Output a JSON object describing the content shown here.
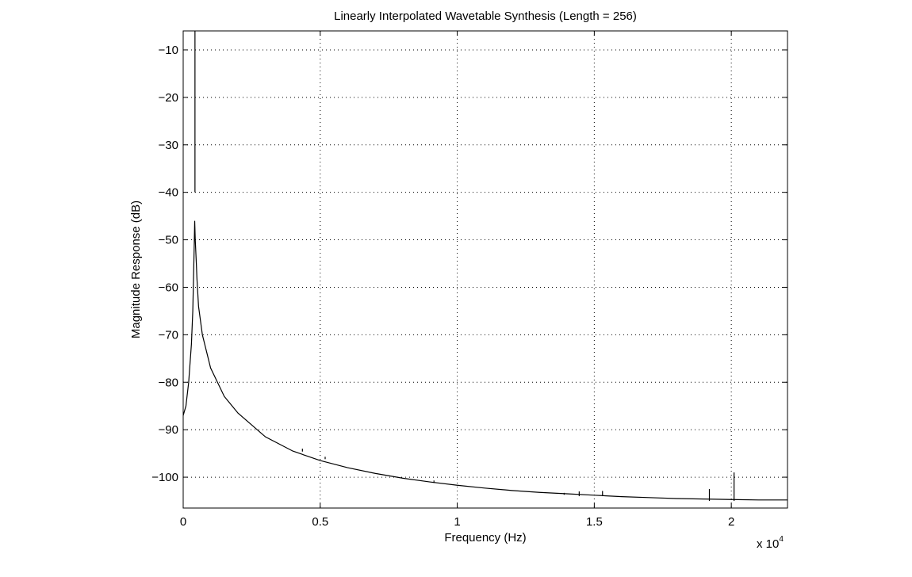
{
  "chart_data": {
    "type": "line",
    "title": "Linearly Interpolated Wavetable Synthesis (Length = 256)",
    "xlabel": "Frequency (Hz)",
    "ylabel": "Magnitude Response (dB)",
    "x_multiplier_label": "x 10",
    "x_multiplier_exponent": "4",
    "xlim": [
      0,
      22050
    ],
    "ylim": [
      -106.5,
      -6
    ],
    "x_scale": 10000,
    "grid": true,
    "legend": "none",
    "x_ticks": [
      0,
      5000,
      10000,
      15000,
      20000
    ],
    "x_tick_labels": [
      "0",
      "0.5",
      "1",
      "1.5",
      "2"
    ],
    "y_ticks": [
      -10,
      -20,
      -30,
      -40,
      -50,
      -60,
      -70,
      -80,
      -90,
      -100
    ],
    "y_tick_labels": [
      "−10",
      "−20",
      "−30",
      "−40",
      "−50",
      "−60",
      "−70",
      "−80",
      "−90",
      "−100"
    ],
    "series": [
      {
        "color": "#000000",
        "x": [
          0,
          100,
          200,
          300,
          350,
          400,
          420,
          440,
          480,
          500,
          560,
          700,
          1000,
          1500,
          2000,
          3000,
          4000,
          5000,
          6000,
          7000,
          8000,
          9000,
          10000,
          11000,
          12000,
          13000,
          14000,
          15000,
          16000,
          17000,
          18000,
          19000,
          20000,
          21000,
          22050
        ],
        "y": [
          -87,
          -85,
          -80,
          -72,
          -65,
          -52,
          -46,
          -50,
          -55,
          -58,
          -64,
          -70,
          -77,
          -83,
          -86.5,
          -91.5,
          -94.5,
          -96.5,
          -98,
          -99.2,
          -100.2,
          -101,
          -101.7,
          -102.3,
          -102.8,
          -103.2,
          -103.5,
          -103.8,
          -104.1,
          -104.3,
          -104.5,
          -104.6,
          -104.7,
          -104.8,
          -104.8
        ]
      }
    ],
    "spikes": [
      {
        "x": 430,
        "y_from": -40,
        "y_to": -6
      },
      {
        "x": 4350,
        "y_from": -94.6,
        "y_to": -94
      },
      {
        "x": 5180,
        "y_from": -96.2,
        "y_to": -95.7
      },
      {
        "x": 9150,
        "y_from": -101.2,
        "y_to": -100.7
      },
      {
        "x": 13900,
        "y_from": -103.7,
        "y_to": -103.3
      },
      {
        "x": 14450,
        "y_from": -104,
        "y_to": -103
      },
      {
        "x": 15300,
        "y_from": -104,
        "y_to": -102.9
      },
      {
        "x": 19200,
        "y_from": -105,
        "y_to": -102.5
      },
      {
        "x": 20100,
        "y_from": -105,
        "y_to": -99
      }
    ]
  }
}
